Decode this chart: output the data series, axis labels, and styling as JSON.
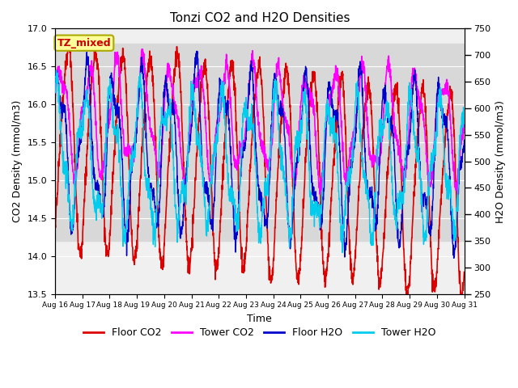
{
  "title": "Tonzi CO2 and H2O Densities",
  "xlabel": "Time",
  "ylabel_left": "CO2 Density (mmol/m3)",
  "ylabel_right": "H2O Density (mmol/m3)",
  "ylim_co2": [
    13.5,
    17.0
  ],
  "ylim_h2o": [
    250,
    750
  ],
  "annotation_text": "TZ_mixed",
  "annotation_bg": "#ffff99",
  "annotation_edge": "#aaaa00",
  "bg_band_low": 14.2,
  "bg_band_high": 16.8,
  "bg_band_color": "#d8d8d8",
  "plot_bg": "#f0f0f0",
  "colors": {
    "floor_co2": "#dd0000",
    "tower_co2": "#ff00ff",
    "floor_h2o": "#0000cc",
    "tower_h2o": "#00ccee"
  },
  "legend_labels": [
    "Floor CO2",
    "Tower CO2",
    "Floor H2O",
    "Tower H2O"
  ],
  "xtick_labels": [
    "Aug 16",
    "Aug 17",
    "Aug 18",
    "Aug 19",
    "Aug 20",
    "Aug 21",
    "Aug 22",
    "Aug 23",
    "Aug 24",
    "Aug 25",
    "Aug 26",
    "Aug 27",
    "Aug 28",
    "Aug 29",
    "Aug 30",
    "Aug 31"
  ],
  "yticks_left": [
    13.5,
    14.0,
    14.5,
    15.0,
    15.5,
    16.0,
    16.5,
    17.0
  ],
  "yticks_right": [
    250,
    300,
    350,
    400,
    450,
    500,
    550,
    600,
    650,
    700,
    750
  ],
  "n_points": 2000,
  "lw_co2": 1.2,
  "lw_h2o": 1.0
}
